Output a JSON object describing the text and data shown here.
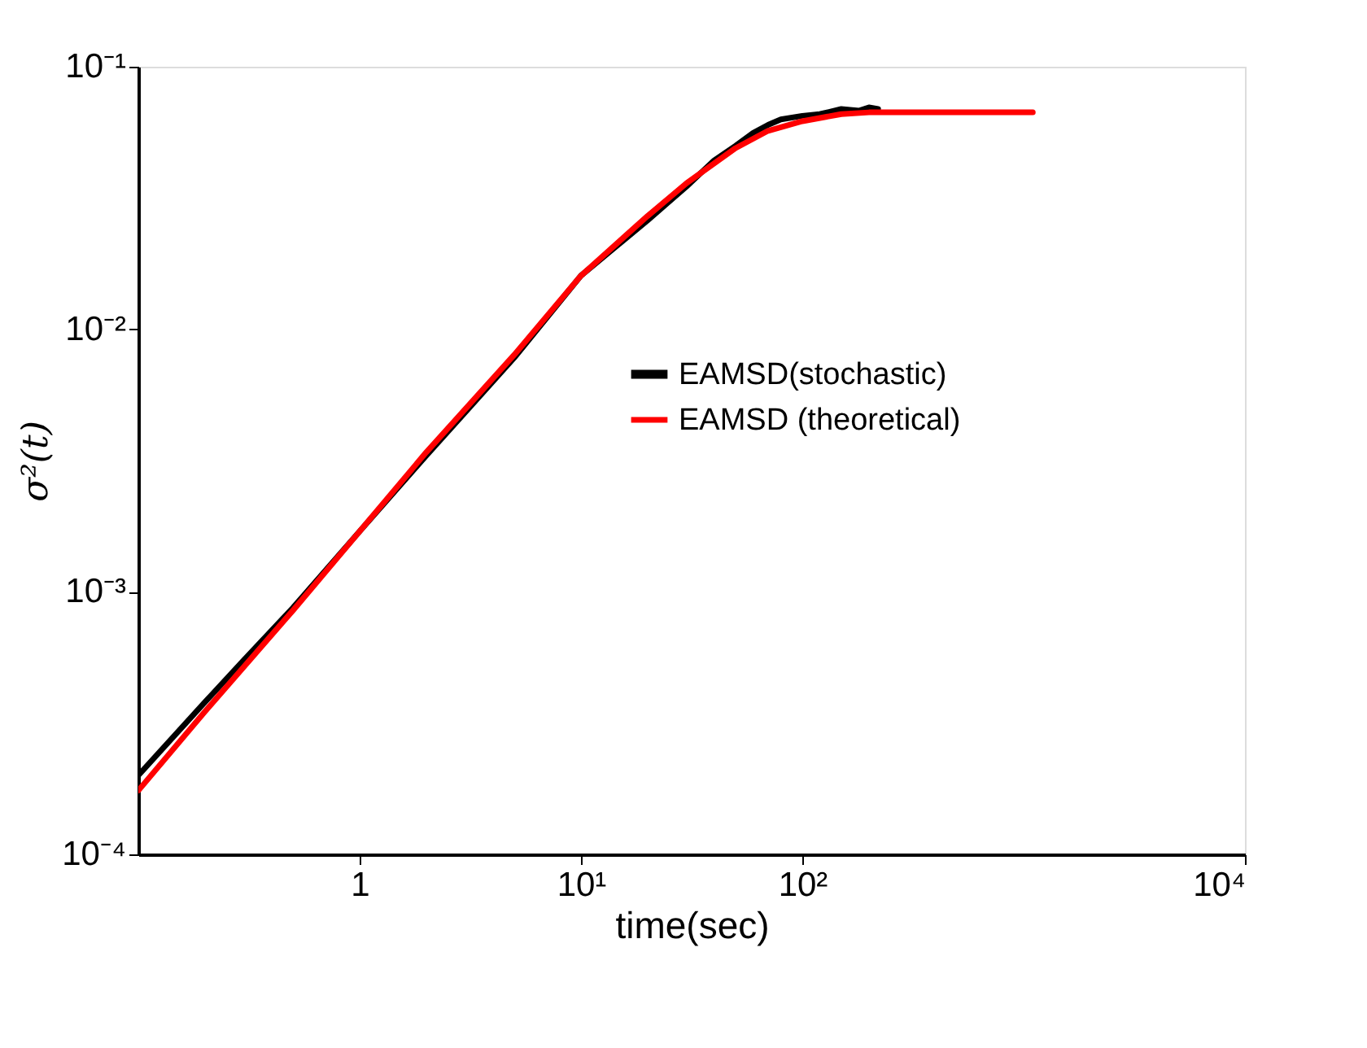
{
  "chart_data": {
    "type": "line",
    "xlabel": "time(sec)",
    "ylabel": "σ²(t)",
    "log": "xy",
    "grid": false,
    "legend": "right",
    "xlim": [
      0.1,
      10000
    ],
    "xticks": [
      1,
      {
        "value": 10,
        "label": "10¹"
      },
      {
        "value": 100,
        "label": "10²"
      },
      {
        "value": 10000,
        "label": "10⁴"
      }
    ],
    "ylim": [
      0.0001,
      0.1
    ],
    "yticks": [
      {
        "value": 0.0001,
        "label": "10⁻⁴"
      },
      {
        "value": 0.001,
        "label": "10⁻³"
      },
      {
        "value": 0.01,
        "label": "10⁻²"
      },
      {
        "value": 0.1,
        "label": "10⁻¹"
      }
    ],
    "series": [
      {
        "name": "EAMSD(stochastic)",
        "color": "#000000",
        "x": [
          0.1,
          0.2,
          0.3,
          0.5,
          1,
          2,
          5,
          10,
          20,
          30,
          40,
          50,
          60,
          70,
          80,
          100,
          120,
          150,
          180,
          200,
          220
        ],
        "values": [
          0.0002,
          0.00038,
          0.00055,
          0.00087,
          0.0017,
          0.0033,
          0.0078,
          0.016,
          0.026,
          0.035,
          0.044,
          0.05,
          0.056,
          0.06,
          0.063,
          0.065,
          0.066,
          0.069,
          0.068,
          0.07,
          0.069
        ]
      },
      {
        "name": "EAMSD (theoretical)",
        "color": "#ff0000",
        "x": [
          0.1,
          0.2,
          0.5,
          1,
          2,
          5,
          10,
          20,
          30,
          50,
          70,
          100,
          150,
          200,
          300,
          1000,
          1100
        ],
        "values": [
          0.000175,
          0.00035,
          0.00085,
          0.0017,
          0.0034,
          0.008,
          0.016,
          0.027,
          0.036,
          0.049,
          0.057,
          0.062,
          0.066,
          0.067,
          0.067,
          0.067,
          0.067
        ]
      }
    ]
  }
}
